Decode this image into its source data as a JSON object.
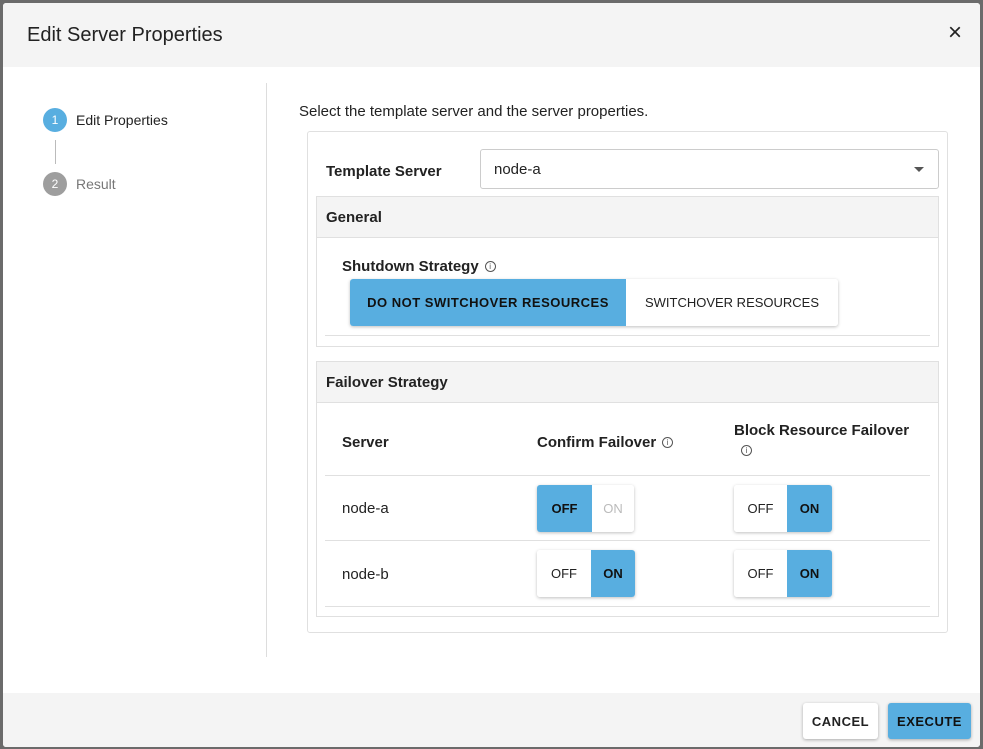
{
  "dialog": {
    "title": "Edit Server Properties",
    "close_icon": "×"
  },
  "steps": [
    {
      "num": "1",
      "label": "Edit Properties",
      "active": true
    },
    {
      "num": "2",
      "label": "Result",
      "active": false
    }
  ],
  "intro": "Select the template server and the server properties.",
  "template": {
    "label": "Template Server",
    "value": "node-a"
  },
  "general": {
    "title": "General",
    "shutdown_label": "Shutdown Strategy",
    "options": [
      "DO NOT SWITCHOVER RESOURCES",
      "SWITCHOVER RESOURCES"
    ],
    "selected": "DO NOT SWITCHOVER RESOURCES"
  },
  "failover": {
    "title": "Failover Strategy",
    "headers": [
      "Server",
      "Confirm Failover",
      "Block Resource Failover"
    ],
    "rows": [
      {
        "server": "node-a",
        "confirm": "OFF",
        "confirm_on_disabled": true,
        "block": "ON"
      },
      {
        "server": "node-b",
        "confirm": "ON",
        "block": "ON"
      }
    ],
    "off_label": "OFF",
    "on_label": "ON"
  },
  "footer": {
    "cancel": "CANCEL",
    "execute": "EXECUTE"
  },
  "colors": {
    "accent": "#58aee0",
    "step_inactive": "#9e9e9e"
  }
}
